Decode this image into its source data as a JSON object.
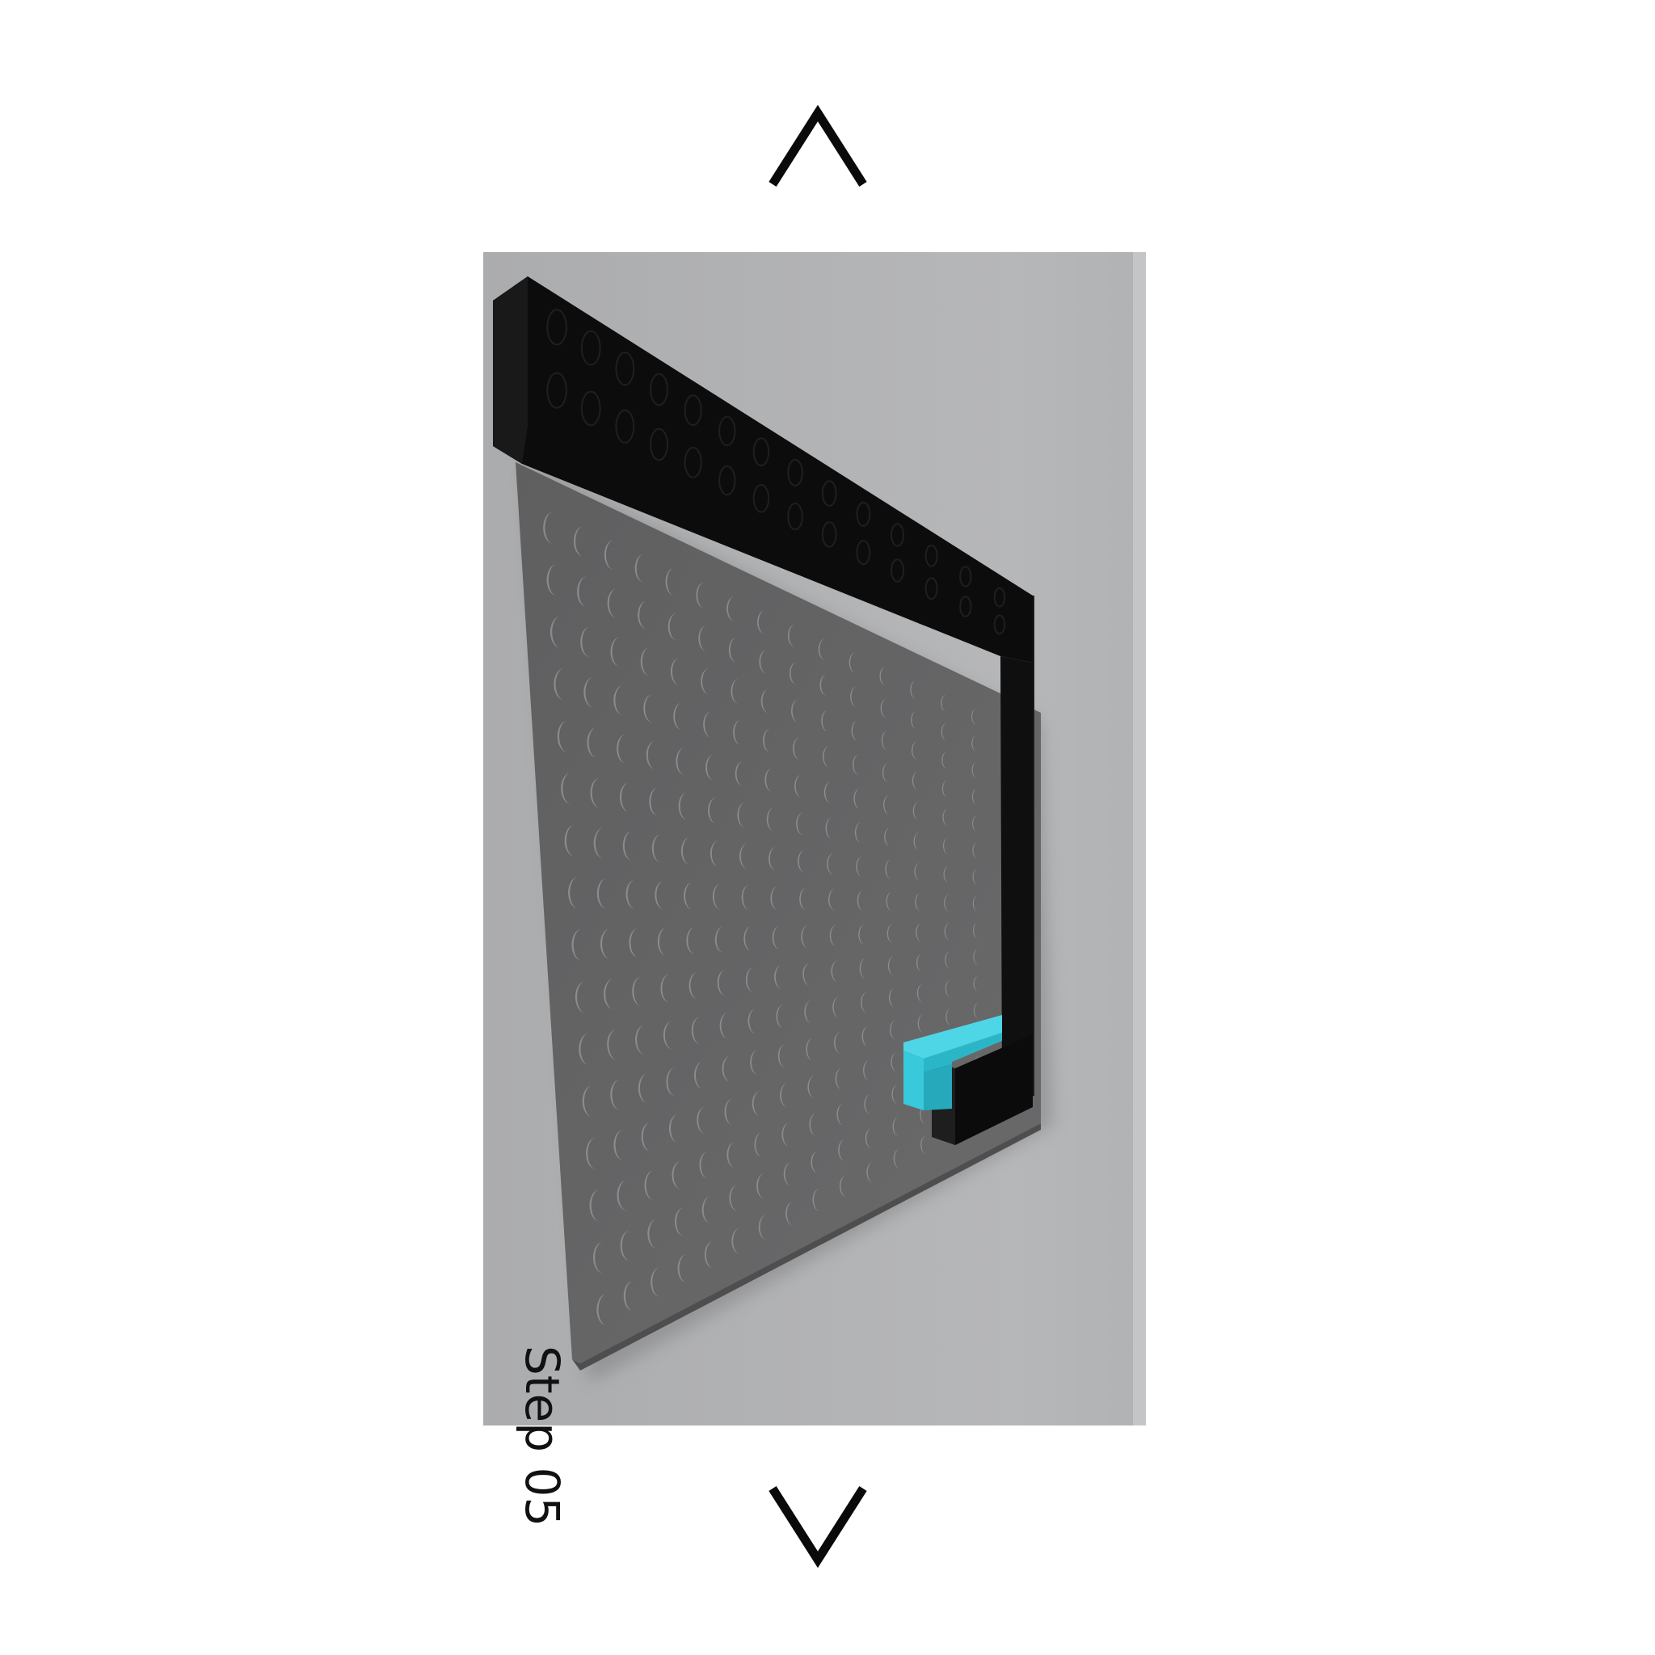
{
  "navigation": {
    "prev_icon": "chevron-up-icon",
    "next_icon": "chevron-down-icon"
  },
  "step": {
    "label": "Step 05"
  },
  "colors": {
    "background": "#ffffff",
    "viewport": "#b0b1b3",
    "baseplate": "#646465",
    "black_brick": "#0b0b0b",
    "cyan_brick": "#3ecfe0"
  }
}
